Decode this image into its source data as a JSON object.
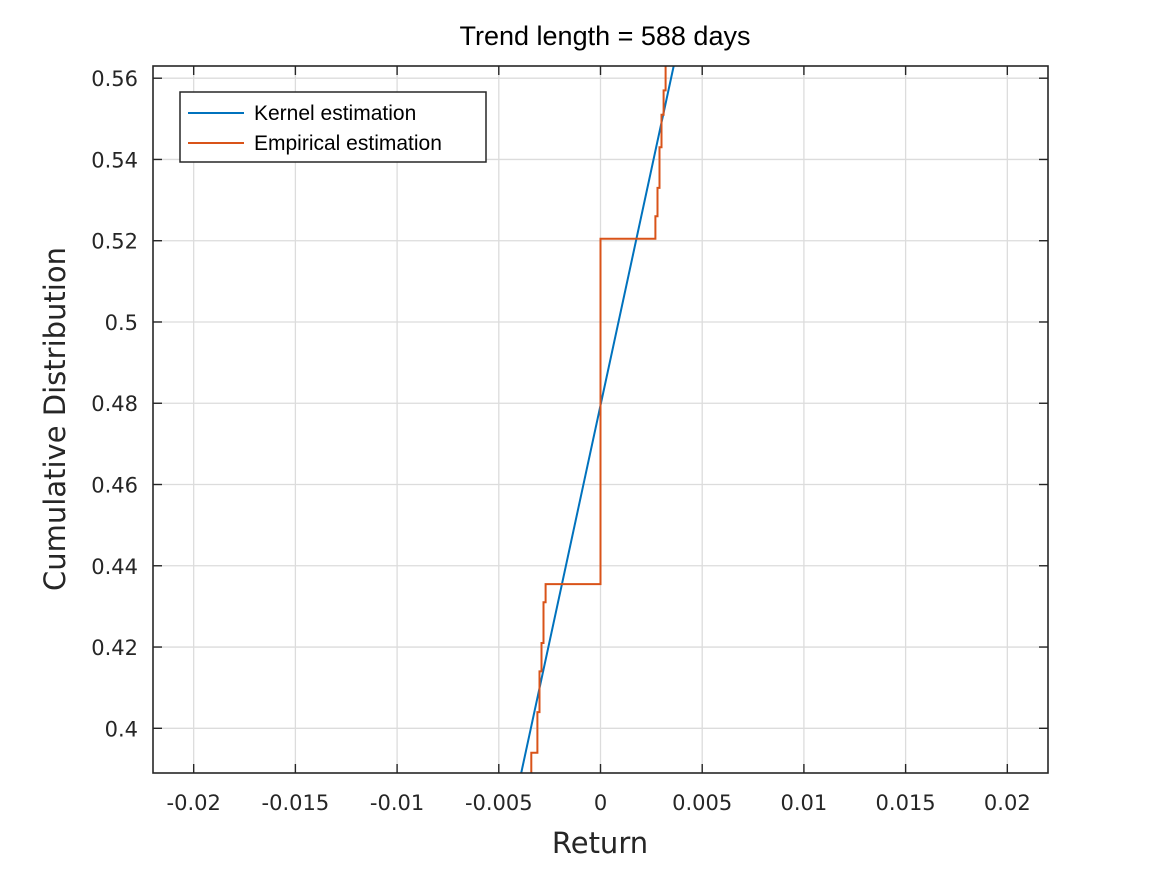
{
  "chart_data": {
    "type": "line",
    "title": "Trend length = 588 days",
    "xlabel": "Return",
    "ylabel": "Cumulative Distribution",
    "xlim": [
      -0.022,
      0.022
    ],
    "ylim": [
      0.389,
      0.563
    ],
    "xticks": [
      -0.02,
      -0.015,
      -0.01,
      -0.005,
      0,
      0.005,
      0.01,
      0.015,
      0.02
    ],
    "xtick_labels": [
      "-0.02",
      "-0.015",
      "-0.01",
      "-0.005",
      "0",
      "0.005",
      "0.01",
      "0.015",
      "0.02"
    ],
    "yticks": [
      0.4,
      0.42,
      0.44,
      0.46,
      0.48,
      0.5,
      0.52,
      0.54,
      0.56
    ],
    "ytick_labels": [
      "0.4",
      "0.42",
      "0.44",
      "0.46",
      "0.48",
      "0.5",
      "0.52",
      "0.54",
      "0.56"
    ],
    "grid": true,
    "legend_position": "top-left",
    "series": [
      {
        "name": "Kernel estimation",
        "color": "#0072BD",
        "style": "line",
        "x": [
          -0.0039,
          0.0036
        ],
        "y": [
          0.389,
          0.563
        ]
      },
      {
        "name": "Empirical estimation",
        "color": "#D95319",
        "style": "step",
        "x": [
          -0.0034,
          -0.0034,
          -0.0031,
          -0.0031,
          -0.003,
          -0.003,
          -0.0029,
          -0.0029,
          -0.0028,
          -0.0028,
          -0.0027,
          -0.0027,
          0,
          0,
          0.0027,
          0.0027,
          0.0028,
          0.0028,
          0.0029,
          0.0029,
          0.003,
          0.003,
          0.0031,
          0.0031,
          0.0032,
          0.0032
        ],
        "y": [
          0.389,
          0.394,
          0.394,
          0.404,
          0.404,
          0.414,
          0.414,
          0.421,
          0.421,
          0.431,
          0.431,
          0.4355,
          0.4355,
          0.5205,
          0.5205,
          0.526,
          0.526,
          0.533,
          0.533,
          0.543,
          0.543,
          0.551,
          0.551,
          0.557,
          0.557,
          0.563
        ]
      }
    ]
  }
}
